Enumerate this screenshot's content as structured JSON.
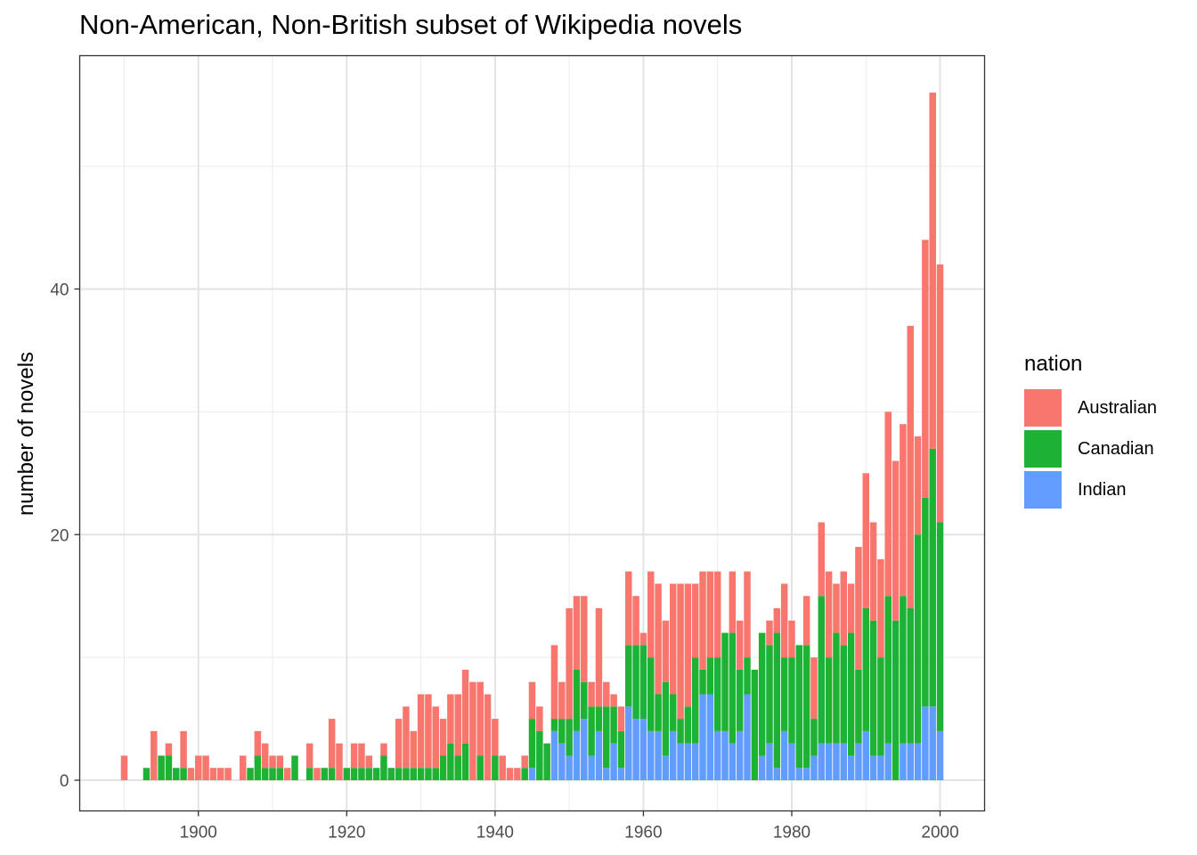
{
  "chart_data": {
    "type": "bar",
    "stacked": true,
    "title": "Non-American, Non-British subset of Wikipedia novels",
    "xlabel": "",
    "ylabel": "number of novels",
    "xlim": [
      1884,
      2006
    ],
    "ylim": [
      -2.5,
      59.0
    ],
    "x_ticks": [
      "1900",
      "1920",
      "1940",
      "1960",
      "1980",
      "2000"
    ],
    "y_ticks": [
      "0",
      "20",
      "40"
    ],
    "grid": true,
    "legend_position": "right",
    "legend_title": "nation",
    "colors": {
      "Australian": "#F8766D",
      "Canadian": "#1DB233",
      "Indian": "#619CFF"
    },
    "years": [
      1890,
      1893,
      1894,
      1895,
      1896,
      1897,
      1898,
      1899,
      1900,
      1901,
      1902,
      1903,
      1904,
      1906,
      1907,
      1908,
      1909,
      1910,
      1911,
      1912,
      1913,
      1914,
      1915,
      1916,
      1917,
      1918,
      1919,
      1920,
      1921,
      1922,
      1923,
      1924,
      1925,
      1926,
      1927,
      1928,
      1929,
      1930,
      1931,
      1932,
      1933,
      1934,
      1935,
      1936,
      1937,
      1938,
      1939,
      1940,
      1941,
      1942,
      1943,
      1944,
      1945,
      1946,
      1947,
      1948,
      1949,
      1950,
      1951,
      1952,
      1953,
      1954,
      1955,
      1956,
      1957,
      1958,
      1959,
      1960,
      1961,
      1962,
      1963,
      1964,
      1965,
      1966,
      1967,
      1968,
      1969,
      1970,
      1971,
      1972,
      1973,
      1974,
      1975,
      1976,
      1977,
      1978,
      1979,
      1980,
      1981,
      1982,
      1983,
      1984,
      1985,
      1986,
      1987,
      1988,
      1989,
      1990,
      1991,
      1992,
      1993,
      1994,
      1995,
      1996,
      1997,
      1998,
      1999,
      2000
    ],
    "series": [
      {
        "name": "Indian",
        "values": [
          0,
          0,
          0,
          0,
          0,
          0,
          0,
          0,
          0,
          0,
          0,
          0,
          0,
          0,
          0,
          0,
          0,
          0,
          0,
          0,
          0,
          0,
          0,
          0,
          0,
          0,
          0,
          0,
          0,
          0,
          0,
          0,
          0,
          0,
          0,
          0,
          0,
          0,
          0,
          0,
          0,
          0,
          0,
          0,
          0,
          0,
          0,
          0,
          0,
          0,
          0,
          0,
          1,
          0,
          0,
          4,
          3,
          2,
          4,
          5,
          2,
          4,
          1,
          3,
          1,
          6,
          5,
          5,
          4,
          4,
          2,
          4,
          3,
          3,
          3,
          7,
          7,
          4,
          4,
          3,
          4,
          7,
          0,
          2,
          3,
          1,
          4,
          3,
          1,
          1,
          2,
          3,
          3,
          3,
          3,
          2,
          3,
          4,
          2,
          2,
          3,
          0,
          3,
          3,
          3,
          6,
          6,
          4
        ]
      },
      {
        "name": "Canadian",
        "values": [
          0,
          1,
          0,
          2,
          2,
          1,
          1,
          0,
          0,
          0,
          0,
          0,
          0,
          0,
          1,
          2,
          1,
          1,
          1,
          0,
          2,
          0,
          1,
          0,
          1,
          1,
          0,
          1,
          1,
          1,
          1,
          1,
          2,
          1,
          1,
          1,
          1,
          1,
          1,
          1,
          2,
          3,
          2,
          3,
          0,
          2,
          0,
          2,
          0,
          0,
          0,
          1,
          4,
          4,
          3,
          1,
          2,
          3,
          5,
          3,
          4,
          2,
          5,
          3,
          3,
          5,
          6,
          6,
          6,
          3,
          6,
          3,
          2,
          3,
          7,
          2,
          3,
          6,
          8,
          9,
          5,
          3,
          9,
          10,
          8,
          11,
          6,
          7,
          10,
          10,
          3,
          12,
          7,
          9,
          8,
          10,
          6,
          10,
          11,
          8,
          12,
          13,
          12,
          11,
          17,
          17,
          21,
          17
        ]
      },
      {
        "name": "Australian",
        "values": [
          2,
          0,
          4,
          0,
          1,
          0,
          3,
          1,
          2,
          2,
          1,
          1,
          1,
          2,
          0,
          2,
          2,
          1,
          1,
          1,
          0,
          0,
          2,
          1,
          0,
          4,
          3,
          0,
          2,
          2,
          1,
          0,
          1,
          0,
          4,
          5,
          3,
          6,
          6,
          5,
          3,
          4,
          5,
          6,
          8,
          6,
          7,
          3,
          2,
          1,
          1,
          1,
          3,
          2,
          0,
          6,
          3,
          9,
          6,
          7,
          2,
          8,
          2,
          1,
          2,
          6,
          4,
          1,
          7,
          9,
          5,
          9,
          11,
          10,
          6,
          8,
          7,
          7,
          0,
          5,
          4,
          7,
          0,
          0,
          2,
          2,
          6,
          3,
          0,
          4,
          5,
          6,
          7,
          4,
          6,
          4,
          10,
          11,
          8,
          8,
          15,
          13,
          14,
          23,
          8,
          21,
          29,
          21
        ]
      }
    ]
  }
}
